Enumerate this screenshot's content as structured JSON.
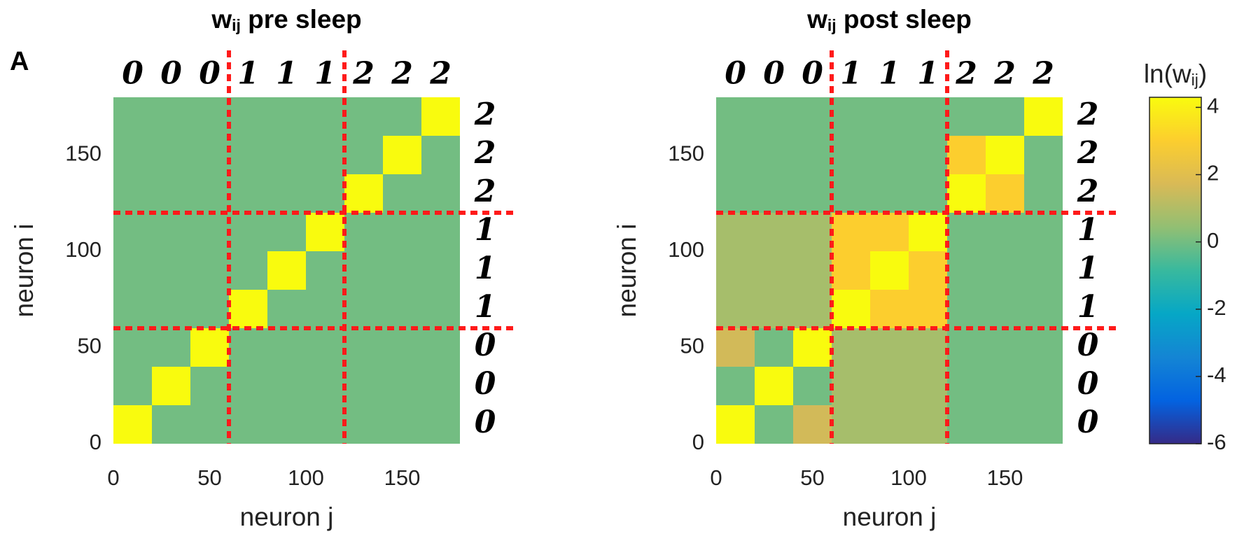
{
  "panel_label": "A",
  "chart_data": [
    {
      "type": "heatmap",
      "title_main": "w",
      "title_sub": "ij",
      "title_rest": " pre sleep",
      "x_label": "neuron j",
      "y_label": "neuron i",
      "xlim": [
        0,
        180
      ],
      "ylim": [
        0,
        180
      ],
      "xticks": [
        0,
        50,
        100,
        150
      ],
      "yticks": [
        0,
        50,
        100,
        150
      ],
      "dividers": [
        60,
        120
      ],
      "divider_color": "#ff1a1a",
      "digits": [
        "0",
        "0",
        "0",
        "1",
        "1",
        "1",
        "2",
        "2",
        "2"
      ],
      "background_value": 0,
      "blocks": [
        {
          "x": [
            0,
            20
          ],
          "y": [
            0,
            20
          ],
          "value": 4.3
        },
        {
          "x": [
            20,
            40
          ],
          "y": [
            20,
            40
          ],
          "value": 4.3
        },
        {
          "x": [
            40,
            60
          ],
          "y": [
            40,
            60
          ],
          "value": 4.3
        },
        {
          "x": [
            60,
            80
          ],
          "y": [
            60,
            80
          ],
          "value": 4.3
        },
        {
          "x": [
            80,
            100
          ],
          "y": [
            80,
            100
          ],
          "value": 4.3
        },
        {
          "x": [
            100,
            120
          ],
          "y": [
            100,
            120
          ],
          "value": 4.3
        },
        {
          "x": [
            120,
            140
          ],
          "y": [
            120,
            140
          ],
          "value": 4.3
        },
        {
          "x": [
            140,
            160
          ],
          "y": [
            140,
            160
          ],
          "value": 4.3
        },
        {
          "x": [
            160,
            180
          ],
          "y": [
            160,
            180
          ],
          "value": 4.3
        }
      ]
    },
    {
      "type": "heatmap",
      "title_main": "w",
      "title_sub": "ij",
      "title_rest": " post sleep",
      "x_label": "neuron j",
      "y_label": "neuron i",
      "xlim": [
        0,
        180
      ],
      "ylim": [
        0,
        180
      ],
      "xticks": [
        0,
        50,
        100,
        150
      ],
      "yticks": [
        0,
        50,
        100,
        150
      ],
      "dividers": [
        60,
        120
      ],
      "divider_color": "#ff1a1a",
      "digits": [
        "0",
        "0",
        "0",
        "1",
        "1",
        "1",
        "2",
        "2",
        "2"
      ],
      "background_value": 0,
      "blocks": [
        {
          "x": [
            0,
            60
          ],
          "y": [
            60,
            120
          ],
          "value": 0.8
        },
        {
          "x": [
            60,
            120
          ],
          "y": [
            0,
            60
          ],
          "value": 0.8
        },
        {
          "x": [
            0,
            20
          ],
          "y": [
            40,
            60
          ],
          "value": 1.6
        },
        {
          "x": [
            40,
            60
          ],
          "y": [
            0,
            20
          ],
          "value": 1.6
        },
        {
          "x": [
            60,
            120
          ],
          "y": [
            60,
            120
          ],
          "value": 3
        },
        {
          "x": [
            120,
            140
          ],
          "y": [
            140,
            160
          ],
          "value": 3
        },
        {
          "x": [
            140,
            160
          ],
          "y": [
            120,
            140
          ],
          "value": 3
        },
        {
          "x": [
            0,
            20
          ],
          "y": [
            0,
            20
          ],
          "value": 4.3
        },
        {
          "x": [
            20,
            40
          ],
          "y": [
            20,
            40
          ],
          "value": 4.3
        },
        {
          "x": [
            40,
            60
          ],
          "y": [
            40,
            60
          ],
          "value": 4.3
        },
        {
          "x": [
            60,
            80
          ],
          "y": [
            60,
            80
          ],
          "value": 4.3
        },
        {
          "x": [
            80,
            100
          ],
          "y": [
            80,
            100
          ],
          "value": 4.3
        },
        {
          "x": [
            100,
            120
          ],
          "y": [
            100,
            120
          ],
          "value": 4.3
        },
        {
          "x": [
            120,
            140
          ],
          "y": [
            120,
            140
          ],
          "value": 4.3
        },
        {
          "x": [
            140,
            160
          ],
          "y": [
            140,
            160
          ],
          "value": 4.3
        },
        {
          "x": [
            160,
            180
          ],
          "y": [
            160,
            180
          ],
          "value": 4.3
        }
      ]
    }
  ],
  "colorbar": {
    "label_main": "ln(w",
    "label_sub": "ij",
    "label_end": ")",
    "clim": [
      -6,
      4.3
    ],
    "ticks": [
      -6,
      -4,
      -2,
      0,
      2,
      4
    ],
    "colormap": [
      "#352a87",
      "#0363e1",
      "#1485d4",
      "#06a7c6",
      "#38b99e",
      "#92bf73",
      "#d9ba56",
      "#fcce2e",
      "#f9fb0e"
    ]
  }
}
